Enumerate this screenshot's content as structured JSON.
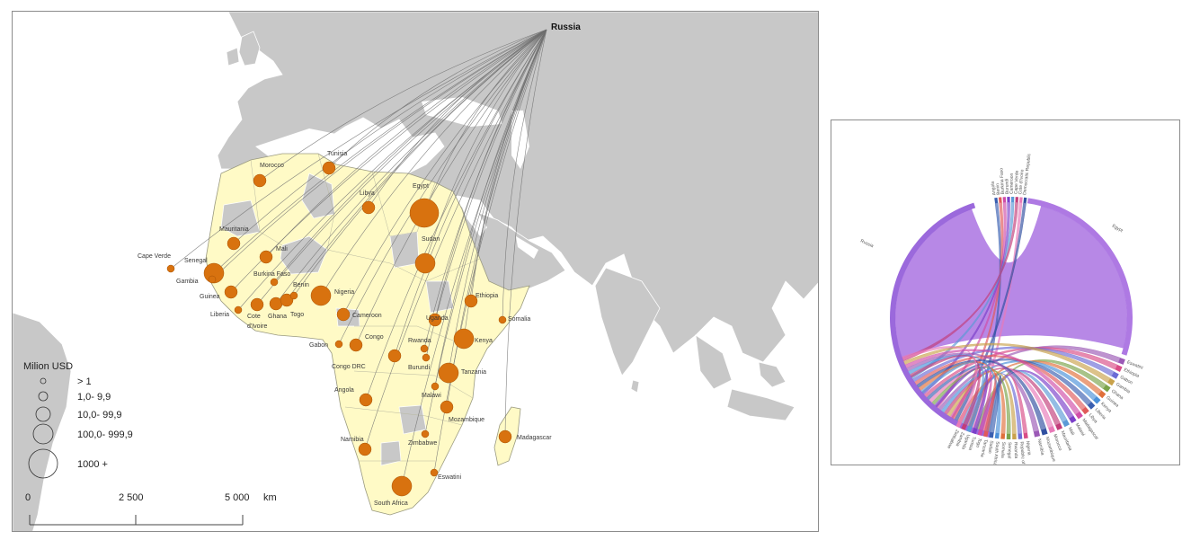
{
  "map": {
    "origin": "Russia",
    "legend": {
      "title": "Milion USD",
      "classes": [
        {
          "label": "> 1"
        },
        {
          "label": "1,0- 9,9"
        },
        {
          "label": "10,0- 99,9"
        },
        {
          "label": "100,0- 999,9"
        },
        {
          "label": "1000 +"
        }
      ]
    },
    "scalebar": {
      "ticks": [
        "0",
        "2 500",
        "5 000"
      ],
      "unit": "km"
    },
    "countries": [
      {
        "name": "Morocco",
        "cls": 2
      },
      {
        "name": "Tunisia",
        "cls": 2
      },
      {
        "name": "Libya",
        "cls": 2
      },
      {
        "name": "Egypt",
        "cls": 4
      },
      {
        "name": "Mauritania",
        "cls": 2
      },
      {
        "name": "Mali",
        "cls": 2
      },
      {
        "name": "Cape Verde",
        "cls": 1
      },
      {
        "name": "Senegal",
        "cls": 3
      },
      {
        "name": "Gambia",
        "cls": 1
      },
      {
        "name": "Guinea",
        "cls": 2
      },
      {
        "name": "Liberia",
        "cls": 1
      },
      {
        "name": "Cote d'Ivoire",
        "cls": 2
      },
      {
        "name": "Burkina Faso",
        "cls": 1
      },
      {
        "name": "Ghana",
        "cls": 2
      },
      {
        "name": "Togo",
        "cls": 2
      },
      {
        "name": "Benin",
        "cls": 1
      },
      {
        "name": "Nigeria",
        "cls": 3
      },
      {
        "name": "Sudan",
        "cls": 3
      },
      {
        "name": "Ethiopia",
        "cls": 2
      },
      {
        "name": "Somalia",
        "cls": 1
      },
      {
        "name": "Cameroon",
        "cls": 2
      },
      {
        "name": "Gabon",
        "cls": 1
      },
      {
        "name": "Congo",
        "cls": 2
      },
      {
        "name": "Congo DRC",
        "cls": 2
      },
      {
        "name": "Uganda",
        "cls": 2
      },
      {
        "name": "Rwanda",
        "cls": 1
      },
      {
        "name": "Burundi",
        "cls": 1
      },
      {
        "name": "Kenya",
        "cls": 3
      },
      {
        "name": "Tanzania",
        "cls": 3
      },
      {
        "name": "Angola",
        "cls": 2
      },
      {
        "name": "Malawi",
        "cls": 1
      },
      {
        "name": "Mozambique",
        "cls": 2
      },
      {
        "name": "Madagascar",
        "cls": 2
      },
      {
        "name": "Namibia",
        "cls": 2
      },
      {
        "name": "Zimbabwe",
        "cls": 1
      },
      {
        "name": "Eswatini",
        "cls": 1
      },
      {
        "name": "South Africa",
        "cls": 3
      }
    ],
    "colors": {
      "ocean": "#ffffff",
      "land": "#c8c8c8",
      "africa": "#fffac6",
      "bubble": "#d8720f",
      "flow": "#6f6f6f"
    }
  },
  "chord": {
    "source": "Russia",
    "main_target": "Egypt",
    "colors": {
      "russia": "#8a4fd6",
      "egypt": "#a56ae0",
      "ring": "#8a4fd6"
    },
    "labels_top": [
      "Angola",
      "Benin",
      "Burkina Faso",
      "Burundi",
      "Cameroon",
      "Cape Verde",
      "Cote d'Ivoire",
      "Democratic Republic"
    ],
    "labels_right": [
      "Eswatini",
      "Ethiopia",
      "Gabon",
      "Gambia",
      "Ghana",
      "Guinea",
      "Kenya",
      "Liberia",
      "Libya",
      "Madagascar",
      "Malawi",
      "Mali",
      "Mauritania",
      "Morocco",
      "Mozambique",
      "Namibia"
    ],
    "labels_bottom": [
      "Nigeria",
      "Republic of the C...",
      "Rwanda",
      "Senegal",
      "Somalia",
      "South Africa",
      "Sudan",
      "Tanzania",
      "Togo",
      "Tunisia",
      "Uganda",
      "Zambia",
      "Zimbabwe"
    ]
  }
}
